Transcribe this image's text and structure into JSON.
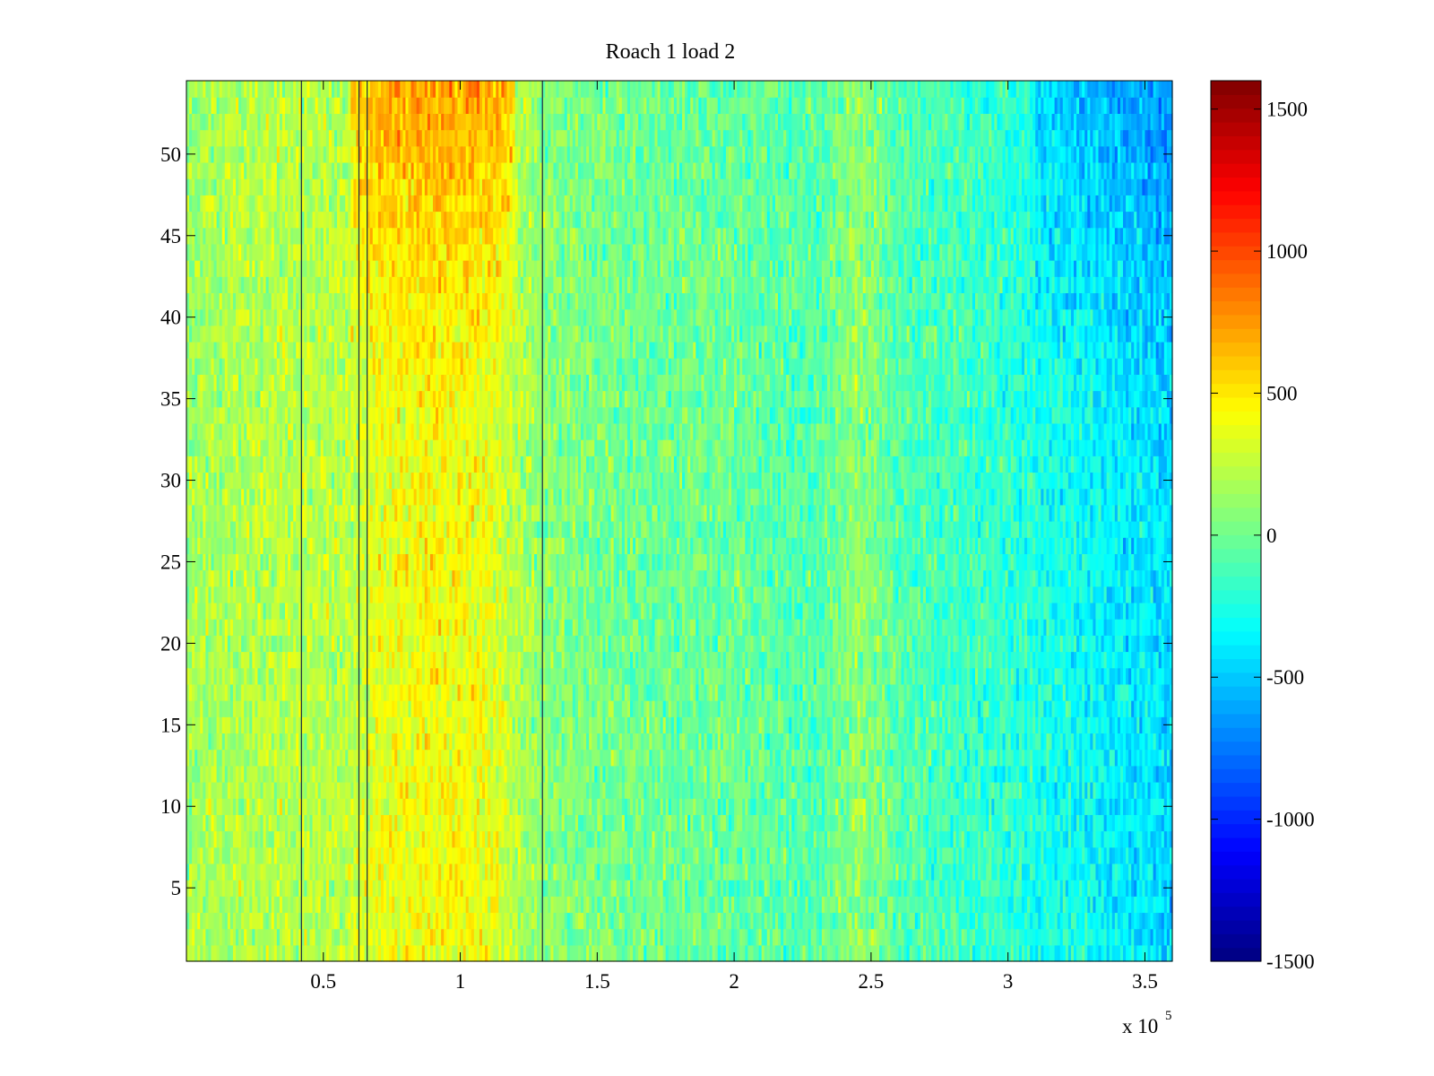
{
  "chart_data": {
    "type": "heatmap",
    "title": "Roach 1 load 2",
    "xlabel": "",
    "ylabel": "",
    "x_exponent_label": {
      "base": "x 10",
      "exponent": "5"
    },
    "xlim": [
      0,
      3.6
    ],
    "ylim": [
      0.5,
      54.5
    ],
    "x_ticks": [
      0.5,
      1,
      1.5,
      2,
      2.5,
      3,
      3.5
    ],
    "x_tick_labels": [
      "0.5",
      "1",
      "1.5",
      "2",
      "2.5",
      "3",
      "3.5"
    ],
    "y_ticks": [
      5,
      10,
      15,
      20,
      25,
      30,
      35,
      40,
      45,
      50
    ],
    "y_tick_labels": [
      "5",
      "10",
      "15",
      "20",
      "25",
      "30",
      "35",
      "40",
      "45",
      "50"
    ],
    "rows": 54,
    "colormap": "jet",
    "clim": [
      -1500,
      1600
    ],
    "colorbar_ticks": [
      -1500,
      -1000,
      -500,
      0,
      500,
      1000,
      1500
    ],
    "colorbar_tick_labels": [
      "-1500",
      "-1000",
      "-500",
      "0",
      "500",
      "1000",
      "1500"
    ],
    "trend_profile": {
      "x": [
        0,
        0.2,
        0.4,
        0.6,
        0.7,
        0.9,
        1.1,
        1.3,
        1.6,
        2.0,
        2.3,
        2.45,
        2.6,
        3.0,
        3.3,
        3.6
      ],
      "value": [
        150,
        200,
        220,
        230,
        380,
        420,
        380,
        80,
        0,
        -20,
        -100,
        120,
        -80,
        -200,
        -320,
        -450
      ]
    },
    "vertical_lines_x": [
      0.42,
      0.63,
      0.66,
      1.3
    ],
    "grid": false
  }
}
